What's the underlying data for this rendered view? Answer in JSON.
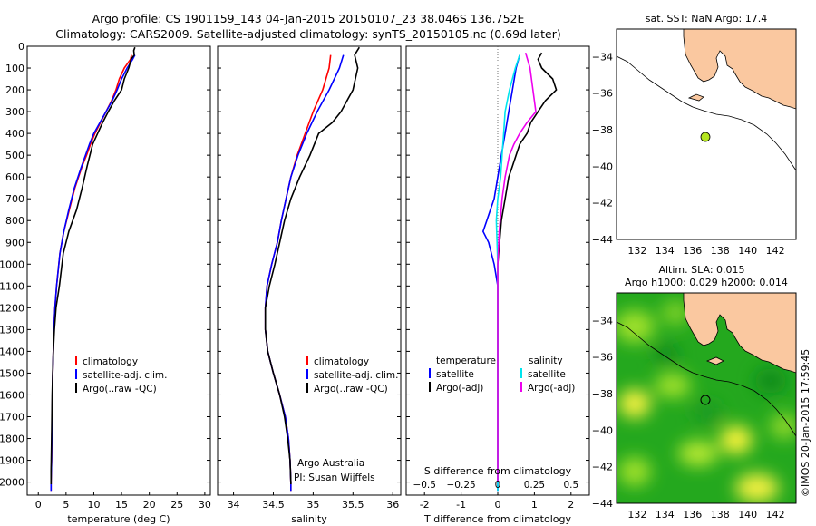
{
  "header": {
    "title1": "Argo profile: CS 1901159_143 04-Jan-2015 20150107_23 38.046S 136.752E",
    "title2": "Climatology: CARS2009. Satellite-adjusted climatology: synTS_20150105.nc (0.69d later)"
  },
  "credit": "©IMOS 20-Jan-2015 17:59:45",
  "colors": {
    "climatology": "#ff0000",
    "satellite": "#0000ff",
    "argo": "#000000",
    "salinity_satellite": "#00e5ee",
    "salinity_argo": "#ee00ee",
    "land": "#fac8a0",
    "ocean_low": "#00a000",
    "ocean_high": "#ffff30",
    "float_marker": "#b4e61e"
  },
  "chart_data": [
    {
      "id": "temperature",
      "type": "line",
      "xlabel": "temperature (deg C)",
      "ylabel": "",
      "xlim": [
        -2,
        31
      ],
      "ylim": [
        2060,
        0
      ],
      "xticks": [
        0,
        5,
        10,
        15,
        20,
        25,
        30
      ],
      "yticks": [
        0,
        100,
        200,
        300,
        400,
        500,
        600,
        700,
        800,
        900,
        1000,
        1100,
        1200,
        1300,
        1400,
        1500,
        1600,
        1700,
        1800,
        1900,
        2000
      ],
      "legend": [
        "climatology",
        "satellite-adj. clim.",
        "Argo(..raw -QC)"
      ],
      "legend_location": "lower-center",
      "series": [
        {
          "name": "climatology",
          "color": "#ff0000",
          "x": [
            16.8,
            16.6,
            15.5,
            14.6,
            14.0,
            13.2,
            12.2,
            11.2,
            10.2,
            9.4,
            8.7,
            7.9,
            6.6,
            5.6,
            4.6,
            3.9,
            3.3,
            3.0,
            2.8,
            2.7,
            2.6,
            2.5,
            2.4,
            2.3,
            2.3
          ],
          "y": [
            40,
            60,
            100,
            150,
            200,
            250,
            300,
            350,
            400,
            450,
            500,
            550,
            650,
            750,
            850,
            950,
            1100,
            1200,
            1300,
            1400,
            1500,
            1700,
            1900,
            2000,
            2040
          ]
        },
        {
          "name": "satellite-adj. clim.",
          "color": "#0000ff",
          "x": [
            17.4,
            17.0,
            16.0,
            15.0,
            14.2,
            13.3,
            12.2,
            11.1,
            10.0,
            9.2,
            8.5,
            7.8,
            6.5,
            5.5,
            4.6,
            3.9,
            3.3,
            3.0,
            2.8,
            2.7,
            2.6,
            2.5,
            2.4,
            2.3,
            2.3
          ],
          "y": [
            40,
            60,
            100,
            150,
            200,
            250,
            300,
            350,
            400,
            450,
            500,
            550,
            650,
            750,
            850,
            950,
            1100,
            1200,
            1300,
            1400,
            1500,
            1700,
            1900,
            2000,
            2040
          ]
        },
        {
          "name": "Argo(..raw -QC)",
          "color": "#000000",
          "x": [
            17.4,
            17.2,
            17.3,
            16.7,
            16.3,
            15.5,
            15.0,
            13.7,
            12.6,
            11.6,
            10.7,
            9.8,
            8.8,
            7.9,
            6.9,
            5.5,
            4.5,
            3.8,
            3.2,
            2.9,
            2.7,
            2.5,
            2.4,
            2.3,
            2.3
          ],
          "y": [
            5,
            20,
            40,
            60,
            100,
            150,
            200,
            250,
            300,
            350,
            400,
            450,
            550,
            650,
            750,
            850,
            950,
            1100,
            1200,
            1300,
            1400,
            1600,
            1800,
            1950,
            2010
          ]
        }
      ]
    },
    {
      "id": "salinity",
      "type": "line",
      "xlabel": "salinity",
      "xlim": [
        33.8,
        36.1
      ],
      "ylim": [
        2060,
        0
      ],
      "xticks": [
        34,
        34.5,
        35,
        35.5,
        36
      ],
      "xtick_labels": [
        "34",
        "34.5",
        "35",
        "35.5",
        "36"
      ],
      "legend": [
        "climatology",
        "satellite-adj. clim.",
        "Argo(..raw -QC)"
      ],
      "legend_location": "lower-right",
      "annotation": [
        "Argo Australia",
        "PI: Susan Wijffels"
      ],
      "series": [
        {
          "name": "climatology",
          "color": "#ff0000",
          "x": [
            35.22,
            35.2,
            35.12,
            35.0,
            34.9,
            34.8,
            34.72,
            34.66,
            34.6,
            34.55,
            34.48,
            34.42,
            34.4,
            34.4,
            34.43,
            34.5,
            34.58,
            34.65,
            34.69,
            34.71,
            34.72,
            34.72,
            34.72
          ],
          "y": [
            40,
            100,
            200,
            300,
            400,
            500,
            600,
            700,
            800,
            900,
            1000,
            1100,
            1200,
            1300,
            1400,
            1500,
            1600,
            1700,
            1800,
            1900,
            2000,
            2030,
            2040
          ]
        },
        {
          "name": "satellite-adj. clim.",
          "color": "#0000ff",
          "x": [
            35.38,
            35.33,
            35.2,
            35.05,
            34.92,
            34.81,
            34.72,
            34.66,
            34.6,
            34.55,
            34.48,
            34.42,
            34.4,
            34.4,
            34.43,
            34.5,
            34.58,
            34.65,
            34.69,
            34.71,
            34.72,
            34.72,
            34.72
          ],
          "y": [
            40,
            100,
            200,
            300,
            400,
            500,
            600,
            700,
            800,
            900,
            1000,
            1100,
            1200,
            1300,
            1400,
            1500,
            1600,
            1700,
            1800,
            1900,
            2000,
            2030,
            2040
          ]
        },
        {
          "name": "Argo(..raw -QC)",
          "color": "#000000",
          "x": [
            35.58,
            35.52,
            35.56,
            35.5,
            35.35,
            35.24,
            35.07,
            34.96,
            34.83,
            34.72,
            34.64,
            34.58,
            34.52,
            34.45,
            34.4,
            34.4,
            34.43,
            34.5,
            34.58,
            34.64,
            34.68,
            34.71,
            34.72,
            34.72
          ],
          "y": [
            5,
            40,
            100,
            200,
            300,
            350,
            400,
            500,
            600,
            700,
            800,
            900,
            1000,
            1100,
            1200,
            1300,
            1400,
            1500,
            1600,
            1700,
            1800,
            1900,
            2000,
            2010
          ]
        }
      ]
    },
    {
      "id": "difference",
      "type": "line",
      "xlabel": "T difference from climatology",
      "top_label": "S difference from climatology",
      "xlim": [
        -2.5,
        2.5
      ],
      "ylim": [
        2060,
        0
      ],
      "xticks": [
        -2,
        -1,
        0,
        1,
        2
      ],
      "top_xticks": [
        -0.5,
        -0.25,
        0,
        0.25,
        0.5
      ],
      "top_xtick_labels": [
        "−0.5",
        "−0.25",
        "0",
        "0.25",
        "0.5"
      ],
      "legend_headings": [
        "temperature",
        "salinity"
      ],
      "legend": [
        "satellite",
        "Argo(-adj)",
        "satellite",
        "Argo(-adj)"
      ],
      "legend_location": "lower-center",
      "series": [
        {
          "name": "satellite",
          "group": "temperature",
          "color": "#0000ff",
          "x": [
            0.6,
            0.5,
            0.4,
            0.3,
            0.2,
            0.1,
            0.0,
            -0.1,
            -0.2,
            -0.3,
            -0.4,
            -0.25,
            -0.1,
            0.0,
            0.0,
            0.0,
            0.0
          ],
          "y": [
            40,
            100,
            200,
            300,
            400,
            500,
            600,
            700,
            750,
            800,
            850,
            900,
            1000,
            1100,
            1300,
            1600,
            2040
          ]
        },
        {
          "name": "Argo(-adj)",
          "group": "temperature",
          "color": "#000000",
          "x": [
            1.2,
            1.1,
            1.2,
            1.5,
            1.6,
            1.3,
            1.1,
            0.9,
            0.8,
            0.6,
            0.5,
            0.4,
            0.3,
            0.2,
            0.1,
            0.05,
            0.0,
            0.0,
            0.0
          ],
          "y": [
            30,
            60,
            100,
            150,
            200,
            250,
            300,
            350,
            400,
            450,
            500,
            550,
            600,
            700,
            800,
            900,
            1000,
            1300,
            2000
          ]
        },
        {
          "name": "satellite",
          "group": "salinity",
          "color": "#00e5ee",
          "x": [
            0.15,
            0.12,
            0.08,
            0.05,
            0.04,
            0.03,
            0.02,
            0.0,
            -0.01,
            0.0,
            0.0,
            0.0
          ],
          "y": [
            40,
            100,
            200,
            300,
            400,
            500,
            600,
            700,
            800,
            1000,
            1500,
            2040
          ]
        },
        {
          "name": "Argo(-adj)",
          "group": "salinity",
          "color": "#ee00ee",
          "x": [
            0.19,
            0.22,
            0.24,
            0.26,
            0.2,
            0.15,
            0.11,
            0.08,
            0.05,
            0.03,
            0.01,
            0.0,
            0.0
          ],
          "y": [
            30,
            100,
            200,
            300,
            350,
            400,
            450,
            500,
            600,
            700,
            850,
            1000,
            2000
          ]
        }
      ]
    },
    {
      "id": "map-sst",
      "type": "heatmap",
      "title": "sat. SST: NaN Argo: 17.4",
      "xlim": [
        130.5,
        143.5
      ],
      "ylim": [
        -44,
        -32.5
      ],
      "xticks": [
        132,
        134,
        136,
        138,
        140,
        142
      ],
      "yticks": [
        -34,
        -36,
        -38,
        -40,
        -42,
        -44
      ],
      "float_position": {
        "lon": 136.752,
        "lat": -38.046
      }
    },
    {
      "id": "map-sla",
      "type": "heatmap",
      "title": [
        "Altim. SLA: 0.015",
        "Argo h1000: 0.029 h2000: 0.014"
      ],
      "xlim": [
        130.5,
        143.5
      ],
      "ylim": [
        -44,
        -32.5
      ],
      "xticks": [
        132,
        134,
        136,
        138,
        140,
        142
      ],
      "yticks": [
        -34,
        -36,
        -38,
        -40,
        -42,
        -44
      ],
      "float_position": {
        "lon": 136.752,
        "lat": -38.046
      }
    }
  ]
}
